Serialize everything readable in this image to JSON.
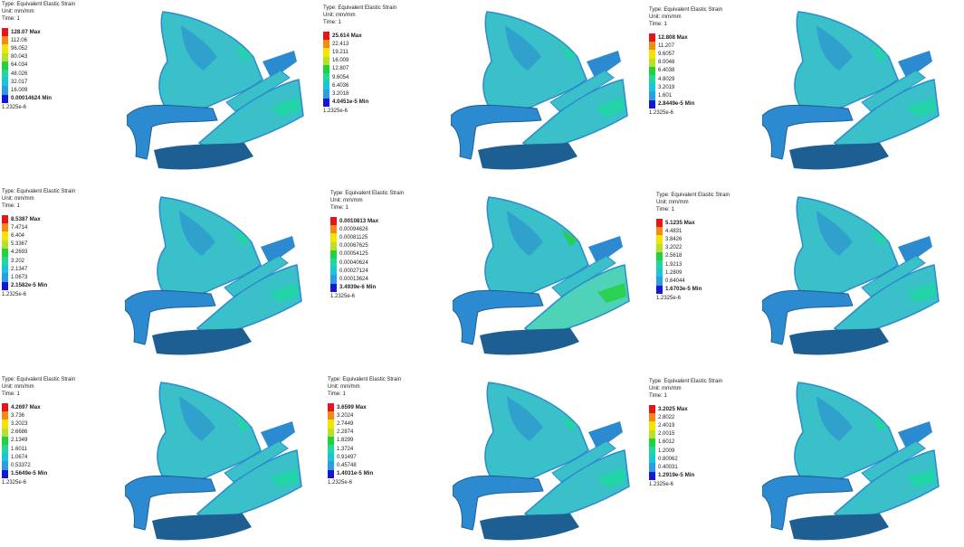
{
  "legend_header": {
    "type": "Type: Equivalent Elastic Strain",
    "unit": "Unit: mm/mm",
    "time": "Time: 1"
  },
  "colors": {
    "red": "#e8141c",
    "orange": "#f28a14",
    "yellow": "#f3e500",
    "yellowgreen": "#b8e028",
    "green": "#22d13c",
    "cyan": "#1ed8a0",
    "lightblue": "#17c6dc",
    "blue": "#2a9ee0",
    "darkblue": "#1416d8",
    "mesh_base": "#2c8bd0",
    "mesh_light": "#39c0c9",
    "mesh_dark": "#1d5f93"
  },
  "legends": [
    {
      "values": [
        "128.07 Max",
        "112.06",
        "96.052",
        "80.043",
        "64.034",
        "48.026",
        "32.017",
        "16.009",
        "0.00014624 Min"
      ],
      "below": "1.2325e-6"
    },
    {
      "values": [
        "25.614 Max",
        "22.413",
        "19.211",
        "16.009",
        "12.807",
        "9.6054",
        "6.4036",
        "3.2018",
        "4.0451e-5 Min"
      ],
      "below": "1.2325e-6"
    },
    {
      "values": [
        "12.808 Max",
        "11.207",
        "9.6057",
        "8.0048",
        "6.4038",
        "4.8029",
        "3.2019",
        "1.601",
        "2.8449e-5 Min"
      ],
      "below": "1.2325e-6"
    },
    {
      "values": [
        "8.5387 Max",
        "7.4714",
        "6.404",
        "5.3367",
        "4.2693",
        "3.202",
        "2.1347",
        "1.0673",
        "2.1582e-5 Min"
      ],
      "below": "1.2325e-6"
    },
    {
      "values": [
        "0.0010813 Max",
        "0.00094626",
        "0.00081125",
        "0.00067625",
        "0.00054125",
        "0.00040624",
        "0.00027124",
        "0.00013624",
        "3.4939e-6 Min"
      ],
      "below": "1.2325e-6"
    },
    {
      "values": [
        "5.1235 Max",
        "4.4831",
        "3.8426",
        "3.2022",
        "2.5618",
        "1.9213",
        "1.2809",
        "0.64044",
        "1.6703e-5 Min"
      ],
      "below": "1.2325e-6"
    },
    {
      "values": [
        "4.2697 Max",
        "3.736",
        "3.2023",
        "2.6686",
        "2.1349",
        "1.6011",
        "1.0674",
        "0.53372",
        "1.5649e-5 Min"
      ],
      "below": "1.2325e-6"
    },
    {
      "values": [
        "3.6599 Max",
        "3.2024",
        "2.7449",
        "2.2874",
        "1.8299",
        "1.3724",
        "0.91497",
        "0.45748",
        "1.4031e-5 Min"
      ],
      "below": "1.2325e-6"
    },
    {
      "values": [
        "3.2025 Max",
        "2.8022",
        "2.4019",
        "2.0015",
        "1.6012",
        "1.2009",
        "0.80062",
        "0.40031",
        "1.2919e-5 Min"
      ],
      "below": "1.2325e-6"
    }
  ]
}
